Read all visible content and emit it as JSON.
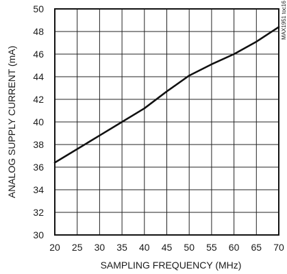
{
  "chart_data": {
    "type": "line",
    "xlabel": "SAMPLING FREQUENCY (MHz)",
    "ylabel": "ANALOG SUPPLY CURRENT (mA)",
    "xlim": [
      20,
      70
    ],
    "ylim": [
      30,
      50
    ],
    "x_ticks": [
      20,
      25,
      30,
      35,
      40,
      45,
      50,
      55,
      60,
      65,
      70
    ],
    "y_ticks": [
      30,
      32,
      34,
      36,
      38,
      40,
      42,
      44,
      46,
      48,
      50
    ],
    "grid": true,
    "series": [
      {
        "x": [
          20,
          25,
          30,
          35,
          40,
          45,
          50,
          55,
          60,
          65,
          70
        ],
        "y": [
          36.4,
          37.6,
          38.8,
          40.0,
          41.2,
          42.7,
          44.1,
          45.1,
          46.0,
          47.1,
          48.4
        ]
      }
    ],
    "annotation": "MAX1951 toc16"
  },
  "colors": {
    "line": "#111111",
    "grid": "#222222",
    "frame": "#111111"
  }
}
